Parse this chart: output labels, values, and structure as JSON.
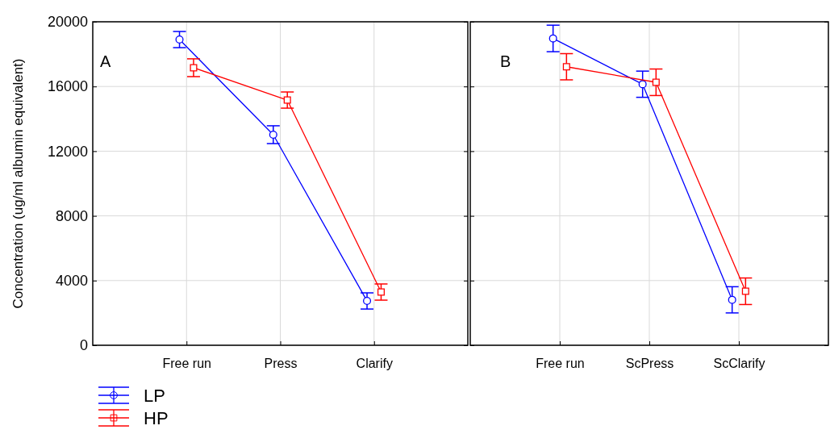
{
  "chart_data": [
    {
      "type": "line",
      "ylabel": "Concentration (ug/ml albumin equivalent)",
      "annotations": [
        "A"
      ],
      "categories": [
        "Free run",
        "Press",
        "Clarify"
      ],
      "ylim": [
        0,
        20000
      ],
      "yticks": [
        0,
        4000,
        8000,
        12000,
        16000,
        20000
      ],
      "grid": true,
      "legend": "bottom left",
      "line_style": "solid",
      "series": [
        {
          "name": "LP",
          "color": "#0000ff",
          "marker": "circle",
          "values": [
            18900,
            13020,
            2740
          ],
          "errors": [
            500,
            550,
            500
          ]
        },
        {
          "name": "HP",
          "color": "#ff0000",
          "marker": "square",
          "values": [
            17160,
            15160,
            3290
          ],
          "errors": [
            550,
            500,
            500
          ]
        }
      ]
    },
    {
      "type": "line",
      "annotations": [
        "B"
      ],
      "categories": [
        "Free run",
        "ScPress",
        "ScClarify"
      ],
      "ylim": [
        0,
        20000
      ],
      "yticks": [
        0,
        4000,
        8000,
        12000,
        16000,
        20000
      ],
      "grid": true,
      "tick_labels": "x",
      "line_style": "solid",
      "series": [
        {
          "color": "#0000ff",
          "marker": "circle",
          "values": [
            18970,
            16140,
            2810
          ],
          "errors": [
            820,
            810,
            810
          ]
        },
        {
          "color": "#ff0000",
          "marker": "square",
          "values": [
            17220,
            16260,
            3340
          ],
          "errors": [
            810,
            820,
            820
          ]
        }
      ]
    }
  ]
}
